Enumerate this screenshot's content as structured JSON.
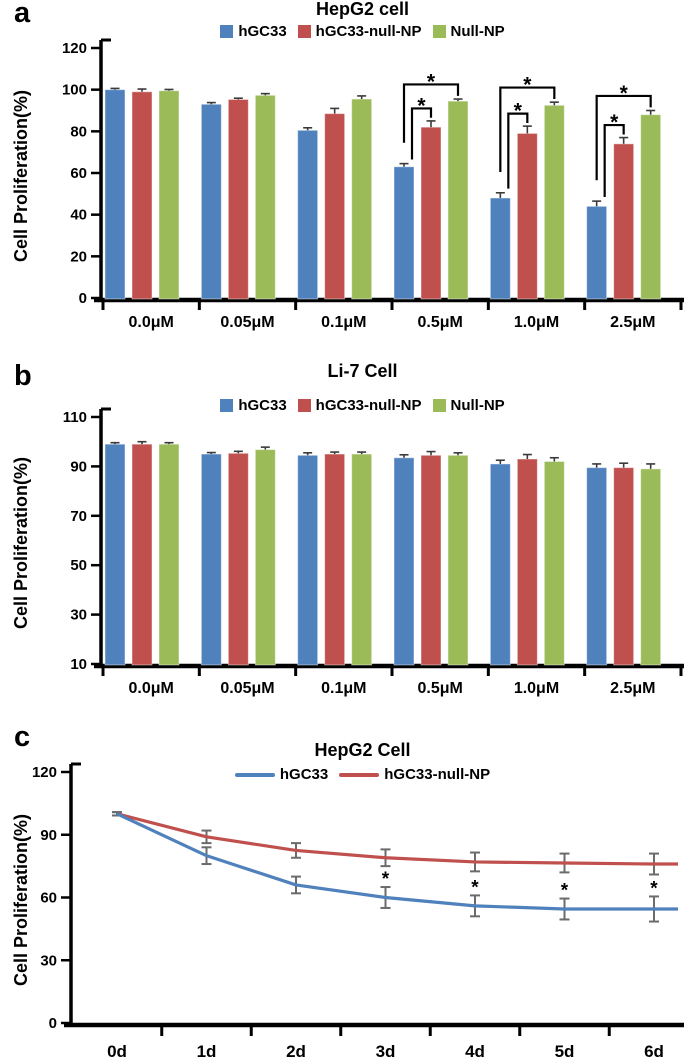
{
  "figure_background": "#ffffff",
  "colors": {
    "series_blue": "#4F81BD",
    "series_red": "#C0504D",
    "series_green": "#9BBB59",
    "axis": "#000000",
    "error_bar": "#3A3A3A",
    "error_bar_line_chart": "#6B6B6B",
    "significance_star": "#17375E",
    "bracket": "#000000"
  },
  "chart_data": [
    {
      "panel_letter": "a",
      "type": "bar",
      "title": "HepG2 cell",
      "ylabel": "Cell Proliferation(%)",
      "xlabel": "",
      "grid": false,
      "legend_position": "top-center",
      "categories": [
        "0.0μM",
        "0.05μM",
        "0.1μM",
        "0.5μM",
        "1.0μM",
        "2.5μM"
      ],
      "ylim": [
        0,
        120
      ],
      "y_ticks": [
        0,
        20,
        40,
        60,
        80,
        100,
        120
      ],
      "series": [
        {
          "name": "hGC33",
          "color": "#4F81BD",
          "values": [
            100,
            93,
            80.5,
            63,
            48,
            44
          ],
          "errors": [
            0.6,
            0.8,
            1.2,
            1.5,
            2.5,
            2.5
          ]
        },
        {
          "name": "hGC33-null-NP",
          "color": "#C0504D",
          "values": [
            99,
            95.3,
            88.5,
            82,
            79,
            74
          ],
          "errors": [
            1.3,
            0.6,
            2.5,
            3,
            3.5,
            3
          ]
        },
        {
          "name": "Null-NP",
          "color": "#9BBB59",
          "values": [
            99.5,
            97.3,
            95.5,
            94.5,
            92.5,
            88
          ],
          "errors": [
            0.6,
            0.8,
            1.5,
            1,
            1.5,
            2
          ]
        }
      ],
      "significance": [
        {
          "group_index": 3,
          "comparisons": [
            {
              "between": [
                0,
                1
              ],
              "label": "*"
            },
            {
              "between": [
                0,
                2
              ],
              "label": "*"
            }
          ]
        },
        {
          "group_index": 4,
          "comparisons": [
            {
              "between": [
                0,
                1
              ],
              "label": "*"
            },
            {
              "between": [
                0,
                2
              ],
              "label": "*"
            }
          ]
        },
        {
          "group_index": 5,
          "comparisons": [
            {
              "between": [
                0,
                1
              ],
              "label": "*"
            },
            {
              "between": [
                0,
                2
              ],
              "label": "*"
            }
          ]
        }
      ]
    },
    {
      "panel_letter": "b",
      "type": "bar",
      "title": "Li-7 Cell",
      "ylabel": "Cell Proliferation(%)",
      "xlabel": "",
      "grid": false,
      "legend_position": "top-center",
      "categories": [
        "0.0μM",
        "0.05μM",
        "0.1μM",
        "0.5μM",
        "1.0μM",
        "2.5μM"
      ],
      "ylim": [
        10,
        110
      ],
      "y_ticks": [
        10,
        30,
        50,
        70,
        90,
        110
      ],
      "series": [
        {
          "name": "hGC33",
          "color": "#4F81BD",
          "values": [
            99,
            95,
            94.5,
            93.5,
            91,
            89.5
          ],
          "errors": [
            0.6,
            0.6,
            1,
            1.2,
            1.5,
            1.5
          ]
        },
        {
          "name": "hGC33-null-NP",
          "color": "#C0504D",
          "values": [
            99,
            95.3,
            95,
            94.5,
            93,
            89.5
          ],
          "errors": [
            1,
            0.8,
            0.8,
            1.5,
            1.8,
            1.8
          ]
        },
        {
          "name": "Null-NP",
          "color": "#9BBB59",
          "values": [
            99,
            96.8,
            95,
            94.5,
            92,
            89
          ],
          "errors": [
            0.6,
            1,
            0.8,
            1,
            1.5,
            2
          ]
        }
      ],
      "significance": []
    },
    {
      "panel_letter": "c",
      "type": "line",
      "title": "HepG2 Cell",
      "ylabel": "Cell Proliferation(%)",
      "xlabel": "",
      "grid": false,
      "legend_position": "top-center",
      "categories": [
        "0d",
        "1d",
        "2d",
        "3d",
        "4d",
        "5d",
        "6d"
      ],
      "ylim": [
        0,
        120
      ],
      "y_ticks": [
        0,
        30,
        60,
        90,
        120
      ],
      "series": [
        {
          "name": "hGC33",
          "color": "#4F81BD",
          "values": [
            100,
            80,
            66,
            60,
            56,
            54.5,
            54.5
          ],
          "errors": [
            0.8,
            4,
            4,
            5,
            5,
            5,
            6
          ],
          "star_indices": [
            3,
            4,
            5,
            6
          ]
        },
        {
          "name": "hGC33-null-NP",
          "color": "#C0504D",
          "values": [
            100,
            89,
            82.5,
            79,
            77,
            76.5,
            76
          ],
          "errors": [
            0.8,
            3,
            3.5,
            4,
            4.5,
            4.5,
            5
          ],
          "star_indices": []
        }
      ],
      "significance": []
    }
  ]
}
